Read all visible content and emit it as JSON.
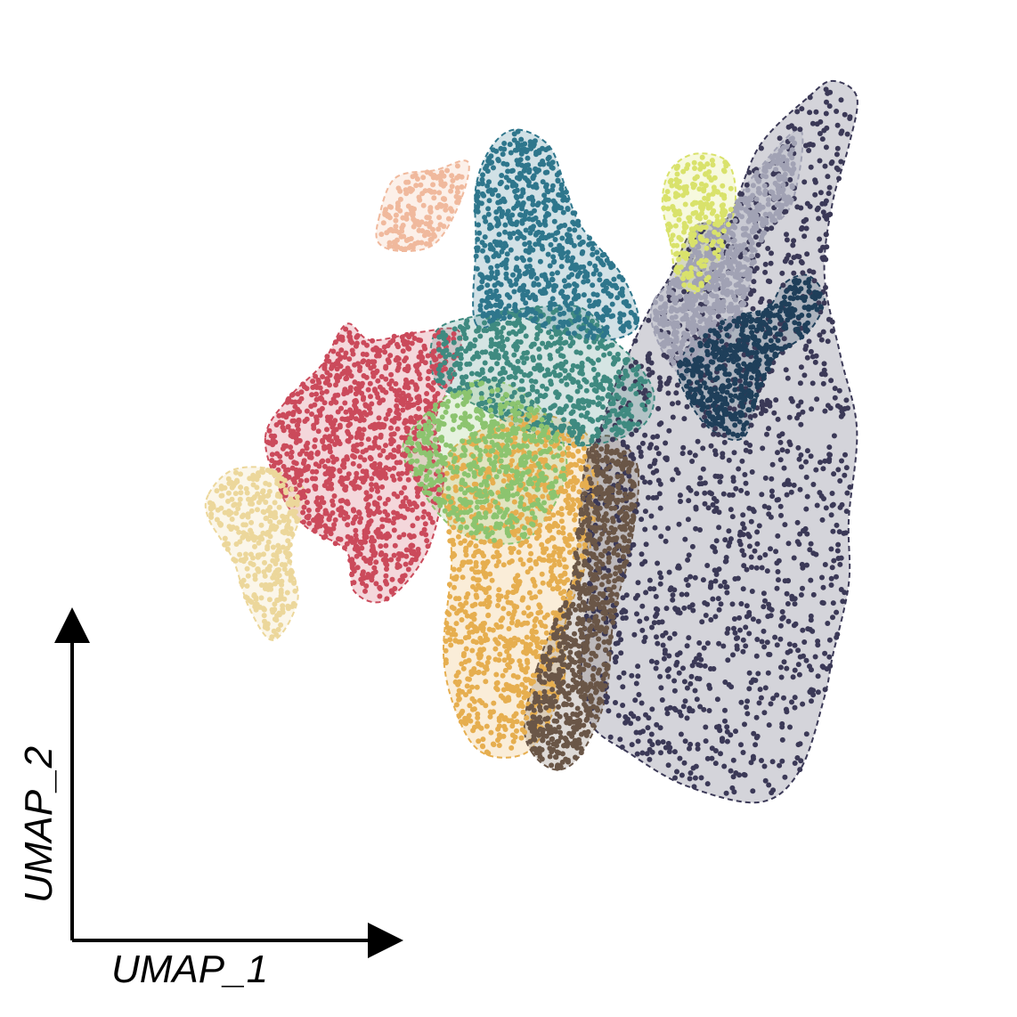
{
  "chart_data": {
    "type": "scatter",
    "title": "",
    "xlabel": "UMAP_1",
    "ylabel": "UMAP_2",
    "xlim": [
      0,
      100
    ],
    "ylim": [
      0,
      100
    ],
    "grid": false,
    "legend": "none",
    "ticks": "none",
    "series": [
      {
        "cluster": 1,
        "color": "#3b3957",
        "centroid": [
          78,
          34
        ],
        "hull": [
          [
            60,
            57
          ],
          [
            62,
            63
          ],
          [
            66,
            72
          ],
          [
            69,
            77
          ],
          [
            72,
            83
          ],
          [
            76,
            84
          ],
          [
            80,
            93
          ],
          [
            86,
            99
          ],
          [
            89,
            101
          ],
          [
            92,
            99
          ],
          [
            91,
            93
          ],
          [
            89,
            86
          ],
          [
            88,
            77
          ],
          [
            90,
            67
          ],
          [
            92,
            58
          ],
          [
            91,
            47
          ],
          [
            91,
            39
          ],
          [
            89,
            30
          ],
          [
            88,
            25
          ],
          [
            85,
            16
          ],
          [
            80,
            12
          ],
          [
            71,
            14
          ],
          [
            64,
            18
          ],
          [
            59,
            22
          ],
          [
            58,
            30
          ],
          [
            59,
            40
          ],
          [
            58,
            49
          ],
          [
            59,
            55
          ]
        ]
      },
      {
        "cluster": 2,
        "color": "#a1a2b4",
        "centroid": [
          75,
          60
        ],
        "hull": [
          [
            67,
            74
          ],
          [
            71,
            78
          ],
          [
            72,
            83
          ],
          [
            76,
            84
          ],
          [
            79,
            89
          ],
          [
            85,
            95
          ],
          [
            84,
            86
          ],
          [
            80,
            81
          ],
          [
            78,
            73
          ],
          [
            74,
            66
          ],
          [
            70,
            65
          ],
          [
            67,
            70
          ]
        ]
      },
      {
        "cluster": 3,
        "color": "#e6ae4f",
        "centroid": [
          53,
          34
        ],
        "hull": [
          [
            41,
            54
          ],
          [
            44,
            57
          ],
          [
            51,
            60
          ],
          [
            58,
            58
          ],
          [
            60,
            53
          ],
          [
            59,
            43
          ],
          [
            56,
            34
          ],
          [
            56,
            28
          ],
          [
            54,
            22
          ],
          [
            51,
            18
          ],
          [
            46,
            18
          ],
          [
            43,
            22
          ],
          [
            41,
            30
          ],
          [
            42,
            42
          ],
          [
            41,
            50
          ]
        ]
      },
      {
        "cluster": 4,
        "color": "#6a5647",
        "centroid": [
          60,
          35
        ],
        "hull": [
          [
            52,
            18
          ],
          [
            51,
            22
          ],
          [
            53,
            30
          ],
          [
            57,
            40
          ],
          [
            58,
            50
          ],
          [
            59,
            56
          ],
          [
            62,
            57
          ],
          [
            65,
            53
          ],
          [
            64,
            43
          ],
          [
            62,
            35
          ],
          [
            61,
            25
          ],
          [
            58,
            18
          ],
          [
            55,
            16
          ]
        ]
      },
      {
        "cluster": 5,
        "color": "#cb4a5b",
        "centroid": [
          33,
          55
        ],
        "hull": [
          [
            19,
            57
          ],
          [
            22,
            62
          ],
          [
            26,
            66
          ],
          [
            29,
            71
          ],
          [
            32,
            69
          ],
          [
            38,
            70
          ],
          [
            43,
            70
          ],
          [
            42,
            64
          ],
          [
            40,
            59
          ],
          [
            41,
            52
          ],
          [
            39,
            43
          ],
          [
            34,
            37
          ],
          [
            30,
            38
          ],
          [
            29,
            43
          ],
          [
            24,
            46
          ],
          [
            21,
            50
          ]
        ]
      },
      {
        "cluster": 6,
        "color": "#3f8a80",
        "centroid": [
          55,
          66
        ],
        "hull": [
          [
            40,
            70
          ],
          [
            45,
            72
          ],
          [
            52,
            73
          ],
          [
            58,
            73
          ],
          [
            62,
            69
          ],
          [
            65,
            66
          ],
          [
            67,
            62
          ],
          [
            65,
            58
          ],
          [
            58,
            56
          ],
          [
            51,
            58
          ],
          [
            45,
            61
          ],
          [
            40,
            64
          ]
        ]
      },
      {
        "cluster": 7,
        "color": "#8cc46f",
        "centroid": [
          48,
          53
        ],
        "hull": [
          [
            36,
            56
          ],
          [
            40,
            61
          ],
          [
            45,
            64
          ],
          [
            50,
            63
          ],
          [
            55,
            58
          ],
          [
            56,
            52
          ],
          [
            52,
            45
          ],
          [
            47,
            44
          ],
          [
            42,
            46
          ],
          [
            38,
            51
          ]
        ]
      },
      {
        "cluster": 8,
        "color": "#2e768c",
        "centroid": [
          50,
          80
        ],
        "hull": [
          [
            45,
            71
          ],
          [
            45,
            81
          ],
          [
            45,
            88
          ],
          [
            47,
            93
          ],
          [
            50,
            95
          ],
          [
            54,
            93
          ],
          [
            56,
            88
          ],
          [
            58,
            83
          ],
          [
            63,
            77
          ],
          [
            65,
            71
          ],
          [
            61,
            69
          ],
          [
            55,
            70
          ],
          [
            50,
            72
          ]
        ]
      },
      {
        "cluster": 9,
        "color": "#f0b99d",
        "centroid": [
          37,
          85
        ],
        "hull": [
          [
            33,
            84
          ],
          [
            35,
            89
          ],
          [
            40,
            90
          ],
          [
            44,
            91
          ],
          [
            43,
            86
          ],
          [
            40,
            81
          ],
          [
            36,
            80
          ],
          [
            33,
            81
          ]
        ]
      },
      {
        "cluster": 10,
        "color": "#d9e26b",
        "centroid": [
          73,
          83
        ],
        "hull": [
          [
            68,
            86
          ],
          [
            69,
            90
          ],
          [
            72,
            92
          ],
          [
            76,
            91
          ],
          [
            77,
            86
          ],
          [
            75,
            79
          ],
          [
            73,
            75
          ],
          [
            70,
            76
          ],
          [
            69,
            81
          ]
        ]
      },
      {
        "cluster": 11,
        "color": "#ecd79b",
        "centroid": [
          17,
          45
        ],
        "hull": [
          [
            12,
            50
          ],
          [
            15,
            53
          ],
          [
            20,
            53
          ],
          [
            24,
            50
          ],
          [
            22,
            43
          ],
          [
            23,
            37
          ],
          [
            20,
            32
          ],
          [
            17,
            36
          ],
          [
            15,
            42
          ],
          [
            12,
            47
          ]
        ]
      },
      {
        "cluster": 12,
        "color": "#1f3f5a",
        "centroid": [
          80,
          62
        ],
        "hull": [
          [
            70,
            66
          ],
          [
            73,
            70
          ],
          [
            77,
            72
          ],
          [
            81,
            73
          ],
          [
            83,
            76
          ],
          [
            86,
            77
          ],
          [
            88,
            74
          ],
          [
            86,
            70
          ],
          [
            82,
            67
          ],
          [
            80,
            63
          ],
          [
            78,
            57
          ],
          [
            74,
            58
          ],
          [
            71,
            62
          ]
        ]
      }
    ]
  }
}
